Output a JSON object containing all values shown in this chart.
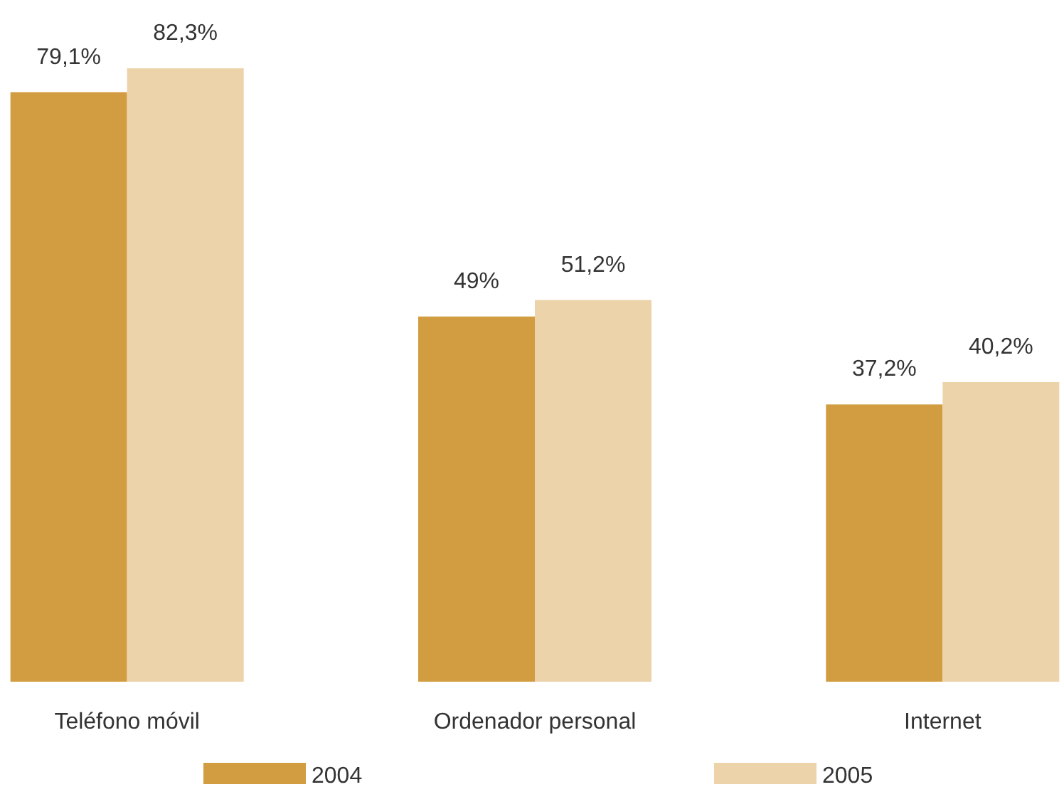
{
  "chart_data": {
    "type": "bar",
    "categories": [
      "Teléfono móvil",
      "Ordenador personal",
      "Internet"
    ],
    "series": [
      {
        "name": "2004",
        "color": "#d29d40",
        "values": [
          79.1,
          49,
          37.2
        ],
        "value_labels": [
          "79,1%",
          "49%",
          "37,2%"
        ]
      },
      {
        "name": "2005",
        "color": "#ecd3a9",
        "values": [
          82.3,
          51.2,
          40.2
        ],
        "value_labels": [
          "82,3%",
          "51,2%",
          "40,2%"
        ]
      }
    ],
    "legend": "bottom"
  }
}
